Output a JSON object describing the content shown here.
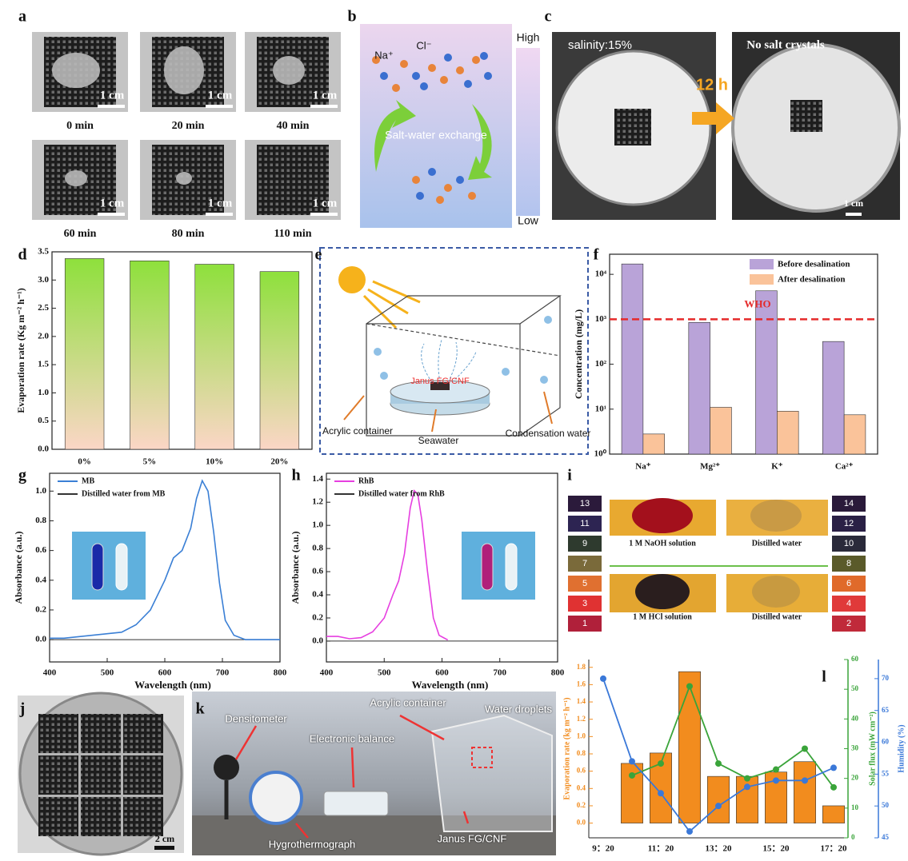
{
  "panel_labels": [
    "a",
    "b",
    "c",
    "d",
    "e",
    "f",
    "g",
    "h",
    "i",
    "j",
    "k",
    "l"
  ],
  "panel_a": {
    "captions": [
      "0 min",
      "20 min",
      "40 min",
      "60 min",
      "80 min",
      "110 min"
    ],
    "scale_label": "1 cm"
  },
  "panel_b": {
    "ions": [
      "Na⁺",
      "Cl⁻"
    ],
    "label": "Salt-water exchange",
    "scale": [
      "High",
      "Low"
    ]
  },
  "panel_c": {
    "left_label": "salinity:15%",
    "right_label": "No salt crystals",
    "arrow_label": "12 h",
    "scale_label": "1 cm"
  },
  "panel_e": {
    "labels": [
      "Acrylic container",
      "Seawater",
      "Condensation water",
      "Janus FG/CNF"
    ]
  },
  "panel_i": {
    "left_numbers": [
      13,
      11,
      9,
      7,
      5,
      3,
      1
    ],
    "right_numbers": [
      14,
      12,
      10,
      8,
      6,
      4,
      2
    ],
    "captions": [
      "1 M NaOH solution",
      "Distilled water",
      "1 M HCl solution",
      "Distilled water"
    ]
  },
  "panel_j": {
    "scale_label": "2 cm"
  },
  "panel_k": {
    "labels": [
      "Densitometer",
      "Electronic balance",
      "Acrylic container",
      "Water droplets",
      "Hygrothermograph",
      "Janus FG/CNF"
    ]
  },
  "chart_data": [
    {
      "type": "bar",
      "ylabel": "Evaporation rate (Kg m⁻² h⁻¹)",
      "categories": [
        "0%",
        "5%",
        "10%",
        "20%"
      ],
      "values": [
        3.38,
        3.34,
        3.28,
        3.15
      ],
      "colors": [
        "#8ee03c",
        "#fbd6c6"
      ],
      "ylim": [
        0,
        3.5
      ],
      "yticks": [
        {
          "value": 0,
          "label": "0.0"
        },
        0.5,
        {
          "value": 1,
          "label": "1.0"
        },
        1.5,
        {
          "value": 2,
          "label": "2.0"
        },
        2.5,
        {
          "value": 3,
          "label": "3.0"
        },
        3.5
      ]
    },
    {
      "type": "bar",
      "log_scale": true,
      "ylabel": "Concentration (mg/L)",
      "categories": [
        "Na⁺",
        "Mg²⁺",
        "K⁺",
        "Ca²⁺"
      ],
      "series": [
        {
          "name": "Before desalination",
          "color": "#b9a3d8",
          "values": [
            17000,
            850,
            4300,
            320
          ]
        },
        {
          "name": "After desalination",
          "color": "#fac39a",
          "values": [
            2.8,
            11,
            9,
            7.5
          ]
        }
      ],
      "ylim": [
        1,
        28000
      ],
      "yticks": [
        {
          "value": 1,
          "label": "10⁰"
        },
        {
          "value": 10,
          "label": "10¹"
        },
        {
          "value": 100,
          "label": "10²"
        },
        {
          "value": 1000,
          "label": "10³"
        },
        {
          "value": 10000,
          "label": "10⁴"
        }
      ],
      "reference_line": {
        "value": 1000,
        "label": "WHO",
        "color": "#e52a2a"
      }
    },
    {
      "type": "line",
      "xlabel": "Wavelength (nm)",
      "ylabel": "Absorbance (a.u.)",
      "x": [
        400,
        425,
        450,
        475,
        500,
        525,
        550,
        575,
        600,
        615,
        630,
        645,
        655,
        665,
        675,
        685,
        695,
        705,
        720,
        740,
        770,
        800
      ],
      "series": [
        {
          "name": "MB",
          "color": "#3a7fd5",
          "values": [
            0.01,
            0.01,
            0.02,
            0.03,
            0.04,
            0.05,
            0.1,
            0.2,
            0.4,
            0.55,
            0.6,
            0.75,
            0.95,
            1.07,
            1.0,
            0.72,
            0.38,
            0.13,
            0.03,
            0.0,
            0.0,
            0.0
          ]
        },
        {
          "name": "Distilled water from MB",
          "color": "#333333",
          "values": [
            0,
            0,
            0,
            0,
            0,
            0,
            0,
            0,
            0,
            0,
            0,
            0,
            0,
            0,
            0,
            0,
            0,
            0,
            0,
            0,
            0,
            0
          ]
        }
      ],
      "xlim": [
        400,
        800
      ],
      "xticks": [
        400,
        500,
        600,
        700,
        800
      ],
      "ylim": [
        -0.15,
        1.12
      ],
      "yticks": [
        {
          "value": 0,
          "label": "0.0"
        },
        0.2,
        0.4,
        0.6,
        0.8,
        {
          "value": 1,
          "label": "1.0"
        }
      ]
    },
    {
      "type": "line",
      "xlabel": "Wavelength (nm)",
      "ylabel": "Absorbance (a.u.)",
      "x": [
        400,
        420,
        440,
        460,
        480,
        500,
        515,
        525,
        535,
        545,
        552,
        558,
        565,
        575,
        585,
        595,
        610,
        650,
        700,
        750,
        800
      ],
      "series": [
        {
          "name": "RhB",
          "color": "#e63fe0",
          "values": [
            0.04,
            0.04,
            0.02,
            0.03,
            0.08,
            0.2,
            0.4,
            0.52,
            0.75,
            1.15,
            1.3,
            1.27,
            1.05,
            0.6,
            0.2,
            0.05,
            0.01,
            null,
            null,
            null,
            null
          ]
        },
        {
          "name": "Distilled water from RhB",
          "color": "#333333",
          "values": [
            0,
            0,
            0,
            0,
            0,
            0,
            0,
            0,
            0,
            0,
            0,
            0,
            0,
            0,
            0,
            0,
            0,
            0,
            0,
            0,
            0
          ]
        }
      ],
      "xlim": [
        400,
        800
      ],
      "xticks": [
        400,
        500,
        600,
        700,
        800
      ],
      "ylim": [
        -0.18,
        1.45
      ],
      "yticks": [
        {
          "value": 0,
          "label": "0.0"
        },
        0.2,
        0.4,
        0.6,
        0.8,
        {
          "value": 1,
          "label": "1.0"
        },
        1.2,
        1.4
      ]
    },
    {
      "type": "combo",
      "ylabel": "Evaporation rate (kg m⁻² h⁻¹)",
      "y2label": "Solar flux (mW cm⁻²)",
      "y3label": "Humidity (%)",
      "categories": [
        "9：20",
        null,
        "11：20",
        null,
        "13：20",
        null,
        "15：20",
        null,
        "17：20"
      ],
      "series": [
        {
          "type": "bar",
          "color": "#f28c1e",
          "values": [
            0.0,
            0.69,
            0.81,
            1.75,
            0.54,
            0.54,
            0.59,
            0.71,
            0.2
          ]
        },
        {
          "type": "line",
          "axis": "y2",
          "color": "#3aa43a",
          "values": [
            null,
            21,
            25,
            51,
            25,
            20,
            23,
            30,
            17
          ]
        },
        {
          "type": "line",
          "axis": "y3",
          "color": "#3a78d8",
          "values": [
            70,
            57,
            52,
            46,
            50,
            53,
            54,
            54,
            56
          ]
        }
      ],
      "ylim": [
        -0.17,
        1.89
      ],
      "yticks": [
        {
          "value": 0,
          "label": "0.0"
        },
        0.2,
        0.4,
        0.6,
        0.8,
        {
          "value": 1,
          "label": "1.0"
        },
        1.2,
        1.4,
        1.6,
        1.8
      ],
      "y2lim": [
        0,
        60
      ],
      "y2ticks": [
        0,
        10,
        20,
        30,
        40,
        50,
        60
      ],
      "y3lim": [
        45,
        73
      ],
      "y3ticks": [
        45,
        50,
        55,
        60,
        65,
        70
      ]
    }
  ]
}
